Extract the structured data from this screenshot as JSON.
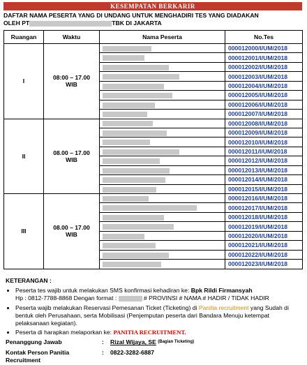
{
  "header": {
    "banner": "KESEMPATAN BERKARIR",
    "title_line1": "DAFTAR NAMA PESERTA YANG DI UNDANG UNTUK MENGHADIRI TES YANG DIADAKAN",
    "title_prefix": "OLEH PT",
    "title_suffix": "TBK DI JAKARTA"
  },
  "table": {
    "columns": [
      "Ruangan",
      "Waktu",
      "Nama Peserta",
      "No.Tes"
    ],
    "groups": [
      {
        "room": "I",
        "time": "08:00 – 17.00 WIB",
        "no_tes": [
          "000012000/I/UM/2018",
          "000012001/I/UM/2018",
          "000012002/I/UM/2018",
          "000012003/I/UM/2018",
          "000012004/I/UM/2018",
          "000012005/I/UM/2018",
          "000012006/I/UM/2018",
          "000012007/I/UM/2018"
        ]
      },
      {
        "room": "II",
        "time": "08.00 – 17.00 WIB",
        "no_tes": [
          "000012008/I/UM/2018",
          "000012009/I/UM/2018",
          "000012010/I/UM/2018",
          "000012011/I/UM/2018",
          "000012012/I/UM/2018",
          "000012013/I/UM/2018",
          "000012014/I/UM/2018",
          "000012015/I/UM/2018"
        ]
      },
      {
        "room": "III",
        "time": "08.00 – 17.00 WIB",
        "no_tes": [
          "000012016/I/UM/2018",
          "000012017/I/UM/2018",
          "000012018/I/UM/2018",
          "000012019/I/UM/2018",
          "000012020/I/UM/2018",
          "000012021/I/UM/2018",
          "000012022/I/UM/2018",
          "000012023/I/UM/2018"
        ]
      }
    ]
  },
  "notes": {
    "heading": "KETERANGAN :",
    "item1_text": "Peserta tes wajib untuk melakukan SMS konfirmasi kehadiran ke: ",
    "item1_contact": "Bpk Rildi Firmansyah",
    "item1_line2_prefix": "Hp : 0812-7788-8868 Dengan format : ",
    "item1_line2_suffix": " # PROVINSI # NAMA # HADIR / TIDAK HADIR",
    "item2_text": "Peserta wajib melakukan Reservasi Pemesanan Ticket (Ticketing) di ",
    "item2_highlight": "Panitia recruitment",
    "item2_rest": " yang Sudah di bentuk oleh Perusahaan, serta Mobilisasi (Penjemputan peserta dari Bandara Menuju ketempat pelaksanaan kegiatan).",
    "item3_text": "Peserta di harapkan melaporkan ke: ",
    "item3_highlight": "PANITIA RECRUITMENT.",
    "pj_label": "Penanggung Jawab",
    "pj_sep": ":",
    "pj_name": "Rizal Wijaya, SE",
    "pj_note": "(Bagian Ticketing)",
    "kp_label": "Kontak Person Panitia  Recruitment",
    "kp_sep": ":",
    "kp_phone": "0822-3282-6887"
  }
}
